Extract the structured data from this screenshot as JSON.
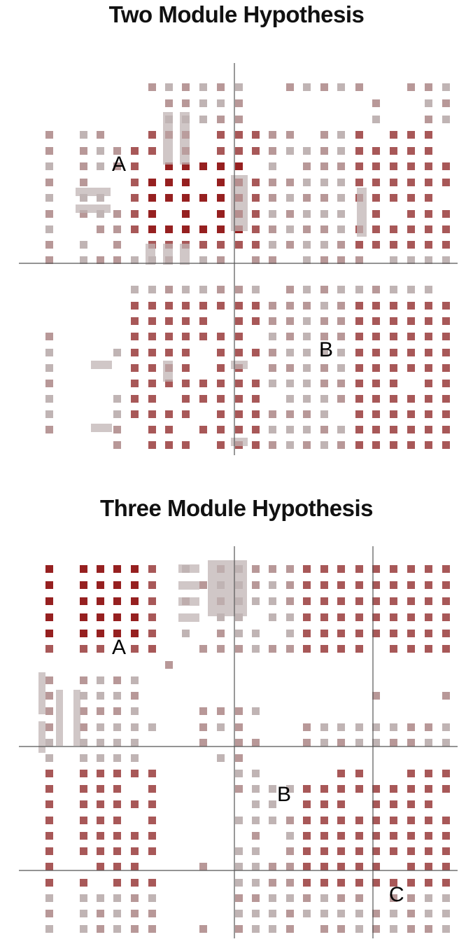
{
  "two_module": {
    "title": "Two Module Hypothesis",
    "module_labels": [
      "A",
      "B"
    ]
  },
  "three_module": {
    "title": "Three Module Hypothesis",
    "module_labels": [
      "A",
      "B",
      "C"
    ]
  },
  "colors": {
    "strong": "#962020",
    "medium": "#a85858",
    "weak": "#b89898",
    "faint": "#c0b4b4",
    "divider": "#555555"
  }
}
